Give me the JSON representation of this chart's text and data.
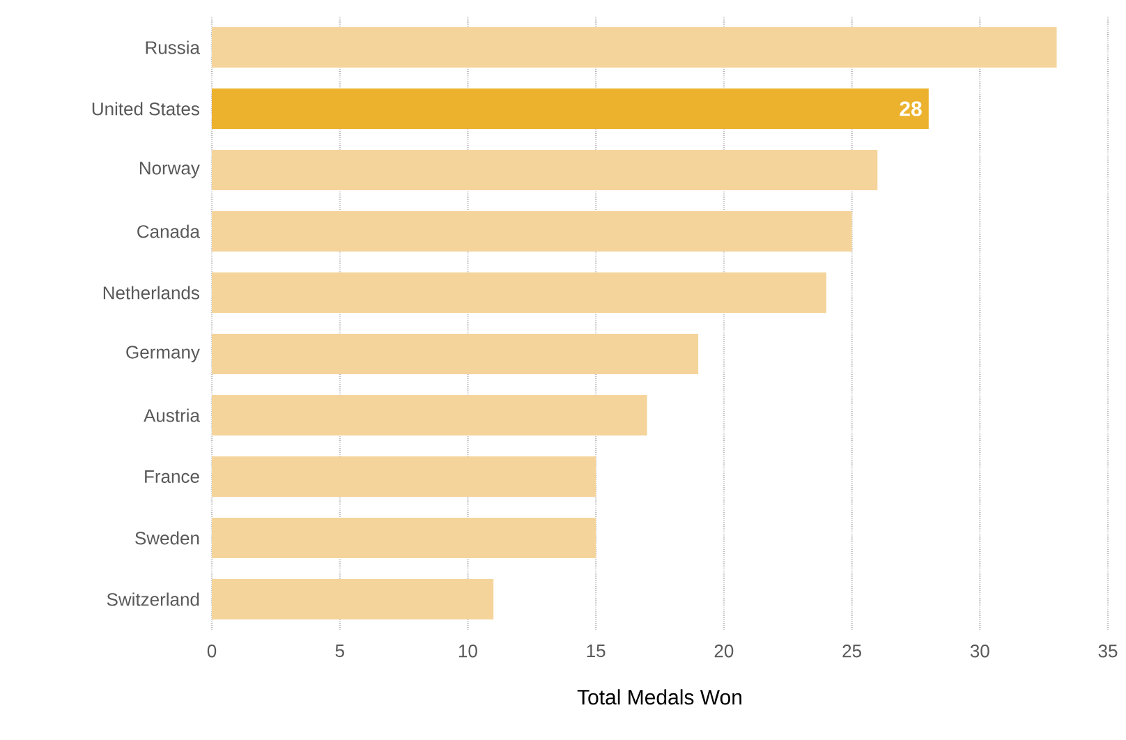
{
  "chart_data": {
    "type": "bar",
    "orientation": "horizontal",
    "xlabel": "Total Medals Won",
    "categories": [
      "Russia",
      "United States",
      "Norway",
      "Canada",
      "Netherlands",
      "Germany",
      "Austria",
      "France",
      "Sweden",
      "Switzerland"
    ],
    "values": [
      33,
      28,
      26,
      25,
      24,
      19,
      17,
      15,
      15,
      11
    ],
    "colors": [
      "#f5d49b",
      "#ecb22e",
      "#f5d49b",
      "#f5d49b",
      "#f5d49b",
      "#f5d49b",
      "#f5d49b",
      "#f5d49b",
      "#f5d49b",
      "#f5d49b"
    ],
    "value_labels": [
      null,
      "28",
      null,
      null,
      null,
      null,
      null,
      null,
      null,
      null
    ],
    "xlim": [
      0,
      35
    ],
    "xticks": [
      0,
      5,
      10,
      15,
      20,
      25,
      30,
      35
    ],
    "grid": "x"
  }
}
